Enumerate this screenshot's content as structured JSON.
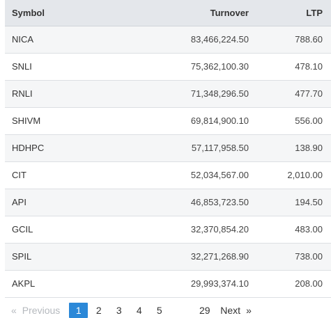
{
  "table": {
    "headers": {
      "symbol": "Symbol",
      "turnover": "Turnover",
      "ltp": "LTP"
    },
    "rows": [
      {
        "symbol": "NICA",
        "turnover": "83,466,224.50",
        "ltp": "788.60"
      },
      {
        "symbol": "SNLI",
        "turnover": "75,362,100.30",
        "ltp": "478.10"
      },
      {
        "symbol": "RNLI",
        "turnover": "71,348,296.50",
        "ltp": "477.70"
      },
      {
        "symbol": "SHIVM",
        "turnover": "69,814,900.10",
        "ltp": "556.00"
      },
      {
        "symbol": "HDHPC",
        "turnover": "57,117,958.50",
        "ltp": "138.90"
      },
      {
        "symbol": "CIT",
        "turnover": "52,034,567.00",
        "ltp": "2,010.00"
      },
      {
        "symbol": "API",
        "turnover": "46,853,723.50",
        "ltp": "194.50"
      },
      {
        "symbol": "GCIL",
        "turnover": "32,370,854.20",
        "ltp": "483.00"
      },
      {
        "symbol": "SPIL",
        "turnover": "32,271,268.90",
        "ltp": "738.00"
      },
      {
        "symbol": "AKPL",
        "turnover": "29,993,374.10",
        "ltp": "208.00"
      }
    ]
  },
  "pagination": {
    "prev_arrow": "«",
    "prev_label": "Previous",
    "pages": [
      "1",
      "2",
      "3",
      "4",
      "5"
    ],
    "last_page": "29",
    "next_label": "Next",
    "next_arrow": "»",
    "active_page": "1"
  },
  "colors": {
    "active_page_bg": "#2b88d8",
    "header_bg": "#e4e7eb",
    "stripe_bg": "#f5f6f7"
  }
}
